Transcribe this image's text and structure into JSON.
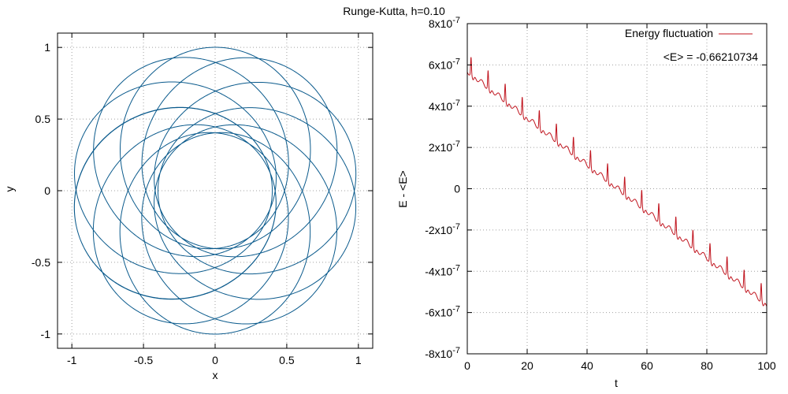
{
  "figure_title": "Runge-Kutta, h=0.10",
  "colors": {
    "orbit": "#0a5a8c",
    "energy": "#c0141e",
    "grid": "#a0a0a0",
    "frame": "#000000"
  },
  "chart_data": [
    {
      "type": "line",
      "subtype": "parametric-orbit",
      "title": "",
      "xlabel": "x",
      "ylabel": "y",
      "xlim": [
        -1.1,
        1.1
      ],
      "ylim": [
        -1.1,
        1.1
      ],
      "xticks": [
        -1,
        -0.5,
        0,
        0.5,
        1
      ],
      "xtick_labels": [
        "-1",
        "-0.5",
        "0",
        "0.5",
        "1"
      ],
      "yticks": [
        -1,
        -0.5,
        0,
        0.5,
        1
      ],
      "ytick_labels": [
        "-1",
        "-0.5",
        "0",
        "0.5",
        "1"
      ],
      "grid": true,
      "series": [
        {
          "color": "#0a5a8c",
          "description_of_shape": "precessing ellipse rosette",
          "orbit": {
            "semi_major": 0.7,
            "eccentricity": 0.43,
            "lobes": 11,
            "precession_per_orbit_deg": 32.7,
            "revolutions": 11
          }
        }
      ]
    },
    {
      "type": "line",
      "title": "",
      "xlabel": "t",
      "ylabel": "E - <E>",
      "xlim": [
        0,
        100
      ],
      "ylim": [
        -8e-07,
        8e-07
      ],
      "xticks": [
        0,
        20,
        40,
        60,
        80,
        100
      ],
      "xtick_labels": [
        "0",
        "20",
        "40",
        "60",
        "80",
        "100"
      ],
      "yticks": [
        -8e-07,
        -6e-07,
        -4e-07,
        -2e-07,
        0,
        2e-07,
        4e-07,
        6e-07,
        8e-07
      ],
      "ytick_labels": [
        {
          "base": "-8x10",
          "exp": "-7"
        },
        {
          "base": "-6x10",
          "exp": "-7"
        },
        {
          "base": "-4x10",
          "exp": "-7"
        },
        {
          "base": "-2x10",
          "exp": "-7"
        },
        {
          "base": "0",
          "exp": ""
        },
        {
          "base": "2x10",
          "exp": "-7"
        },
        {
          "base": "4x10",
          "exp": "-7"
        },
        {
          "base": "6x10",
          "exp": "-7"
        },
        {
          "base": "8x10",
          "exp": "-7"
        }
      ],
      "grid": true,
      "legend_position": "top-right",
      "series": [
        {
          "name": "Energy fluctuation",
          "color": "#c0141e",
          "trend": {
            "start": 5.7e-07,
            "end": -5.6e-07
          },
          "spike_period": 5.7,
          "spike_height": 8.5e-08
        }
      ],
      "annotation": "<E> = -0.66210734"
    }
  ]
}
